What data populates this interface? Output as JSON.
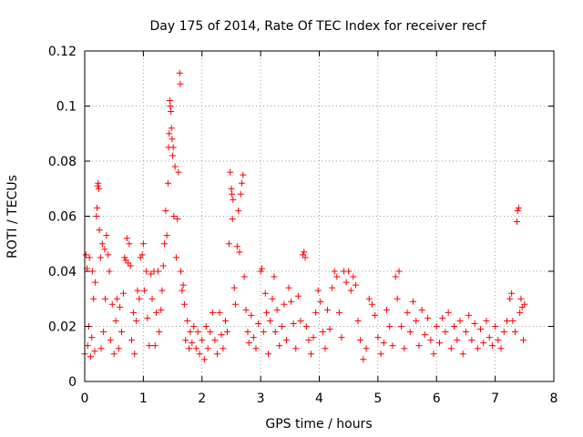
{
  "chart_data": {
    "type": "scatter",
    "title": "Day 175 of 2014, Rate Of TEC Index for receiver recf",
    "xlabel": "GPS time / hours",
    "ylabel": "ROTI / TECUs",
    "xlim": [
      0,
      8
    ],
    "ylim": [
      0,
      0.12
    ],
    "xticks": [
      "0",
      "1",
      "2",
      "3",
      "4",
      "5",
      "6",
      "7",
      "8"
    ],
    "yticks": [
      "0",
      "0.02",
      "0.04",
      "0.06",
      "0.08",
      "0.1",
      "0.12"
    ],
    "grid": true,
    "marker": "plus",
    "color": "#ff0000",
    "series": [
      {
        "name": "ROTI",
        "points": [
          [
            0.0,
            0.01
          ],
          [
            0.02,
            0.046
          ],
          [
            0.04,
            0.041
          ],
          [
            0.05,
            0.013
          ],
          [
            0.07,
            0.02
          ],
          [
            0.08,
            0.045
          ],
          [
            0.1,
            0.009
          ],
          [
            0.12,
            0.016
          ],
          [
            0.13,
            0.04
          ],
          [
            0.15,
            0.03
          ],
          [
            0.17,
            0.011
          ],
          [
            0.18,
            0.036
          ],
          [
            0.2,
            0.06
          ],
          [
            0.21,
            0.063
          ],
          [
            0.22,
            0.071
          ],
          [
            0.23,
            0.072
          ],
          [
            0.24,
            0.07
          ],
          [
            0.25,
            0.055
          ],
          [
            0.27,
            0.045
          ],
          [
            0.28,
            0.012
          ],
          [
            0.3,
            0.05
          ],
          [
            0.32,
            0.018
          ],
          [
            0.34,
            0.048
          ],
          [
            0.35,
            0.03
          ],
          [
            0.37,
            0.053
          ],
          [
            0.4,
            0.046
          ],
          [
            0.42,
            0.04
          ],
          [
            0.44,
            0.015
          ],
          [
            0.47,
            0.028
          ],
          [
            0.5,
            0.01
          ],
          [
            0.53,
            0.022
          ],
          [
            0.55,
            0.03
          ],
          [
            0.58,
            0.012
          ],
          [
            0.6,
            0.027
          ],
          [
            0.63,
            0.018
          ],
          [
            0.66,
            0.032
          ],
          [
            0.68,
            0.045
          ],
          [
            0.7,
            0.044
          ],
          [
            0.72,
            0.052
          ],
          [
            0.74,
            0.043
          ],
          [
            0.76,
            0.05
          ],
          [
            0.78,
            0.042
          ],
          [
            0.8,
            0.015
          ],
          [
            0.83,
            0.025
          ],
          [
            0.85,
            0.01
          ],
          [
            0.88,
            0.022
          ],
          [
            0.9,
            0.033
          ],
          [
            0.93,
            0.03
          ],
          [
            0.95,
            0.045
          ],
          [
            0.98,
            0.046
          ],
          [
            1.0,
            0.05
          ],
          [
            1.02,
            0.033
          ],
          [
            1.05,
            0.04
          ],
          [
            1.07,
            0.023
          ],
          [
            1.1,
            0.013
          ],
          [
            1.13,
            0.039
          ],
          [
            1.15,
            0.03
          ],
          [
            1.18,
            0.04
          ],
          [
            1.2,
            0.013
          ],
          [
            1.22,
            0.025
          ],
          [
            1.25,
            0.04
          ],
          [
            1.27,
            0.018
          ],
          [
            1.3,
            0.026
          ],
          [
            1.32,
            0.033
          ],
          [
            1.34,
            0.042
          ],
          [
            1.36,
            0.05
          ],
          [
            1.38,
            0.062
          ],
          [
            1.4,
            0.053
          ],
          [
            1.42,
            0.072
          ],
          [
            1.43,
            0.085
          ],
          [
            1.44,
            0.09
          ],
          [
            1.45,
            0.102
          ],
          [
            1.46,
            0.1
          ],
          [
            1.47,
            0.098
          ],
          [
            1.48,
            0.092
          ],
          [
            1.49,
            0.088
          ],
          [
            1.5,
            0.082
          ],
          [
            1.51,
            0.085
          ],
          [
            1.52,
            0.06
          ],
          [
            1.54,
            0.078
          ],
          [
            1.56,
            0.045
          ],
          [
            1.58,
            0.059
          ],
          [
            1.6,
            0.076
          ],
          [
            1.62,
            0.112
          ],
          [
            1.63,
            0.108
          ],
          [
            1.64,
            0.04
          ],
          [
            1.66,
            0.033
          ],
          [
            1.68,
            0.035
          ],
          [
            1.7,
            0.028
          ],
          [
            1.72,
            0.015
          ],
          [
            1.75,
            0.022
          ],
          [
            1.78,
            0.012
          ],
          [
            1.8,
            0.018
          ],
          [
            1.83,
            0.014
          ],
          [
            1.86,
            0.02
          ],
          [
            1.9,
            0.012
          ],
          [
            1.93,
            0.018
          ],
          [
            1.96,
            0.01
          ],
          [
            2.0,
            0.015
          ],
          [
            2.04,
            0.008
          ],
          [
            2.07,
            0.02
          ],
          [
            2.1,
            0.012
          ],
          [
            2.14,
            0.018
          ],
          [
            2.18,
            0.025
          ],
          [
            2.22,
            0.015
          ],
          [
            2.26,
            0.01
          ],
          [
            2.3,
            0.025
          ],
          [
            2.33,
            0.017
          ],
          [
            2.36,
            0.012
          ],
          [
            2.4,
            0.022
          ],
          [
            2.43,
            0.018
          ],
          [
            2.46,
            0.05
          ],
          [
            2.48,
            0.076
          ],
          [
            2.5,
            0.07
          ],
          [
            2.51,
            0.068
          ],
          [
            2.52,
            0.059
          ],
          [
            2.53,
            0.066
          ],
          [
            2.55,
            0.034
          ],
          [
            2.57,
            0.028
          ],
          [
            2.6,
            0.049
          ],
          [
            2.62,
            0.062
          ],
          [
            2.64,
            0.047
          ],
          [
            2.66,
            0.068
          ],
          [
            2.68,
            0.072
          ],
          [
            2.7,
            0.075
          ],
          [
            2.72,
            0.038
          ],
          [
            2.75,
            0.026
          ],
          [
            2.78,
            0.018
          ],
          [
            2.8,
            0.014
          ],
          [
            2.84,
            0.024
          ],
          [
            2.88,
            0.016
          ],
          [
            2.92,
            0.012
          ],
          [
            2.96,
            0.021
          ],
          [
            3.0,
            0.04
          ],
          [
            3.02,
            0.041
          ],
          [
            3.05,
            0.018
          ],
          [
            3.08,
            0.032
          ],
          [
            3.1,
            0.025
          ],
          [
            3.13,
            0.01
          ],
          [
            3.16,
            0.022
          ],
          [
            3.2,
            0.03
          ],
          [
            3.23,
            0.038
          ],
          [
            3.25,
            0.018
          ],
          [
            3.28,
            0.026
          ],
          [
            3.32,
            0.013
          ],
          [
            3.36,
            0.02
          ],
          [
            3.4,
            0.028
          ],
          [
            3.44,
            0.015
          ],
          [
            3.48,
            0.034
          ],
          [
            3.52,
            0.029
          ],
          [
            3.56,
            0.021
          ],
          [
            3.6,
            0.012
          ],
          [
            3.64,
            0.031
          ],
          [
            3.68,
            0.022
          ],
          [
            3.72,
            0.046
          ],
          [
            3.74,
            0.047
          ],
          [
            3.76,
            0.045
          ],
          [
            3.78,
            0.02
          ],
          [
            3.82,
            0.015
          ],
          [
            3.86,
            0.01
          ],
          [
            3.9,
            0.016
          ],
          [
            3.94,
            0.025
          ],
          [
            3.98,
            0.033
          ],
          [
            4.02,
            0.029
          ],
          [
            4.06,
            0.018
          ],
          [
            4.1,
            0.012
          ],
          [
            4.14,
            0.026
          ],
          [
            4.18,
            0.019
          ],
          [
            4.22,
            0.034
          ],
          [
            4.26,
            0.04
          ],
          [
            4.3,
            0.038
          ],
          [
            4.34,
            0.025
          ],
          [
            4.38,
            0.016
          ],
          [
            4.42,
            0.04
          ],
          [
            4.46,
            0.036
          ],
          [
            4.5,
            0.04
          ],
          [
            4.54,
            0.033
          ],
          [
            4.58,
            0.038
          ],
          [
            4.62,
            0.035
          ],
          [
            4.66,
            0.022
          ],
          [
            4.7,
            0.015
          ],
          [
            4.75,
            0.008
          ],
          [
            4.8,
            0.012
          ],
          [
            4.85,
            0.03
          ],
          [
            4.9,
            0.028
          ],
          [
            4.95,
            0.024
          ],
          [
            5.0,
            0.016
          ],
          [
            5.05,
            0.01
          ],
          [
            5.1,
            0.014
          ],
          [
            5.15,
            0.026
          ],
          [
            5.2,
            0.02
          ],
          [
            5.25,
            0.013
          ],
          [
            5.3,
            0.038
          ],
          [
            5.33,
            0.03
          ],
          [
            5.36,
            0.04
          ],
          [
            5.4,
            0.02
          ],
          [
            5.45,
            0.012
          ],
          [
            5.5,
            0.025
          ],
          [
            5.55,
            0.018
          ],
          [
            5.6,
            0.029
          ],
          [
            5.65,
            0.022
          ],
          [
            5.7,
            0.013
          ],
          [
            5.75,
            0.026
          ],
          [
            5.8,
            0.017
          ],
          [
            5.85,
            0.023
          ],
          [
            5.9,
            0.015
          ],
          [
            5.95,
            0.01
          ],
          [
            6.0,
            0.02
          ],
          [
            6.05,
            0.014
          ],
          [
            6.1,
            0.023
          ],
          [
            6.15,
            0.018
          ],
          [
            6.2,
            0.025
          ],
          [
            6.25,
            0.012
          ],
          [
            6.3,
            0.02
          ],
          [
            6.35,
            0.015
          ],
          [
            6.4,
            0.022
          ],
          [
            6.45,
            0.01
          ],
          [
            6.5,
            0.018
          ],
          [
            6.55,
            0.024
          ],
          [
            6.6,
            0.015
          ],
          [
            6.65,
            0.021
          ],
          [
            6.7,
            0.012
          ],
          [
            6.75,
            0.019
          ],
          [
            6.8,
            0.014
          ],
          [
            6.85,
            0.022
          ],
          [
            6.9,
            0.016
          ],
          [
            6.95,
            0.013
          ],
          [
            7.0,
            0.02
          ],
          [
            7.05,
            0.015
          ],
          [
            7.1,
            0.012
          ],
          [
            7.15,
            0.018
          ],
          [
            7.2,
            0.022
          ],
          [
            7.25,
            0.03
          ],
          [
            7.28,
            0.032
          ],
          [
            7.3,
            0.022
          ],
          [
            7.34,
            0.018
          ],
          [
            7.37,
            0.058
          ],
          [
            7.38,
            0.062
          ],
          [
            7.4,
            0.063
          ],
          [
            7.42,
            0.025
          ],
          [
            7.44,
            0.03
          ],
          [
            7.46,
            0.027
          ],
          [
            7.48,
            0.015
          ],
          [
            7.5,
            0.028
          ]
        ]
      }
    ]
  }
}
